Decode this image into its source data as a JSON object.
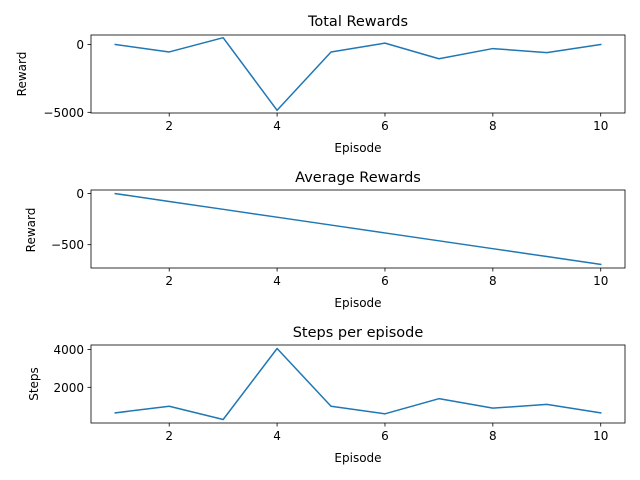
{
  "chart_data": [
    {
      "type": "line",
      "title": "Total Rewards",
      "xlabel": "Episode",
      "ylabel": "Reward",
      "x": [
        1,
        2,
        3,
        4,
        5,
        6,
        7,
        8,
        9,
        10
      ],
      "series": [
        {
          "values": [
            0,
            -550,
            500,
            -4850,
            -550,
            100,
            -1050,
            -300,
            -600,
            0
          ]
        }
      ],
      "xlim": [
        0.55,
        10.45
      ],
      "ylim": [
        -5050,
        700
      ],
      "xticks": [
        2,
        4,
        6,
        8,
        10
      ],
      "yticks": [
        0,
        -5000
      ],
      "xtick_labels": [
        "2",
        "4",
        "6",
        "8",
        "10"
      ],
      "ytick_labels": [
        "0",
        "−5000"
      ],
      "grid": false,
      "color": "#1f77b4"
    },
    {
      "type": "line",
      "title": "Average Rewards",
      "xlabel": "Episode",
      "ylabel": "Reward",
      "x": [
        1,
        2,
        3,
        4,
        5,
        6,
        7,
        8,
        9,
        10
      ],
      "series": [
        {
          "values": [
            0,
            -77,
            -154,
            -231,
            -308,
            -385,
            -462,
            -539,
            -616,
            -693
          ]
        }
      ],
      "xlim": [
        0.55,
        10.45
      ],
      "ylim": [
        -728,
        35
      ],
      "xticks": [
        2,
        4,
        6,
        8,
        10
      ],
      "yticks": [
        0,
        -500
      ],
      "xtick_labels": [
        "2",
        "4",
        "6",
        "8",
        "10"
      ],
      "ytick_labels": [
        "0",
        "−500"
      ],
      "grid": false,
      "color": "#1f77b4"
    },
    {
      "type": "line",
      "title": "Steps per episode",
      "xlabel": "Episode",
      "ylabel": "Steps",
      "x": [
        1,
        2,
        3,
        4,
        5,
        6,
        7,
        8,
        9,
        10
      ],
      "series": [
        {
          "values": [
            650,
            1000,
            300,
            4050,
            1000,
            600,
            1400,
            900,
            1100,
            650
          ]
        }
      ],
      "xlim": [
        0.55,
        10.45
      ],
      "ylim": [
        115,
        4235
      ],
      "xticks": [
        2,
        4,
        6,
        8,
        10
      ],
      "yticks": [
        2000,
        4000
      ],
      "xtick_labels": [
        "2",
        "4",
        "6",
        "8",
        "10"
      ],
      "ytick_labels": [
        "2000",
        "4000"
      ],
      "grid": false,
      "color": "#1f77b4"
    }
  ]
}
